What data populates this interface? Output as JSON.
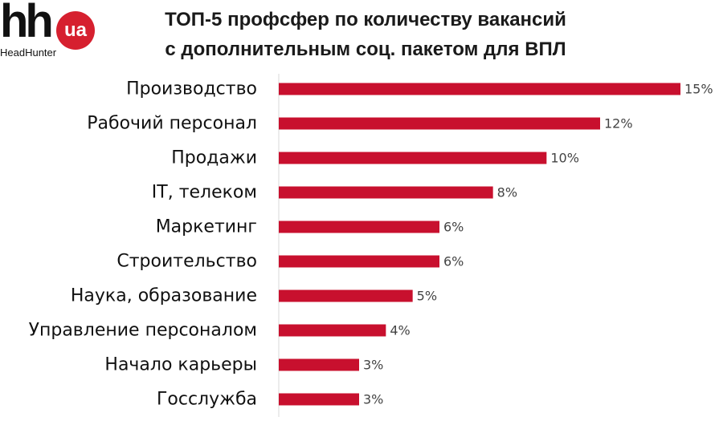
{
  "logo": {
    "mark": "hh",
    "badge": "ua",
    "name": "HeadHunter"
  },
  "title": {
    "line1": "ТОП-5 профсфер по количеству вакансий",
    "line2": "с дополнительным соц. пакетом для ВПЛ"
  },
  "colors": {
    "bar": "#c8102e",
    "axis": "#d9d9d9",
    "brand": "#d6202f"
  },
  "chart_data": {
    "type": "bar",
    "orientation": "horizontal",
    "categories": [
      "Производство",
      "Рабочий персонал",
      "Продажи",
      "IT, телеком",
      "Маркетинг",
      "Строительство",
      "Наука, образование",
      "Управление персоналом",
      "Начало карьеры",
      "Госслужба"
    ],
    "values": [
      15,
      12,
      10,
      8,
      6,
      6,
      5,
      4,
      3,
      3
    ],
    "value_labels": [
      "15%",
      "12%",
      "10%",
      "8%",
      "6%",
      "6%",
      "5%",
      "4%",
      "3%",
      "3%"
    ],
    "unit": "%",
    "xlim": [
      0,
      15
    ],
    "grid": false,
    "legend": "none"
  }
}
